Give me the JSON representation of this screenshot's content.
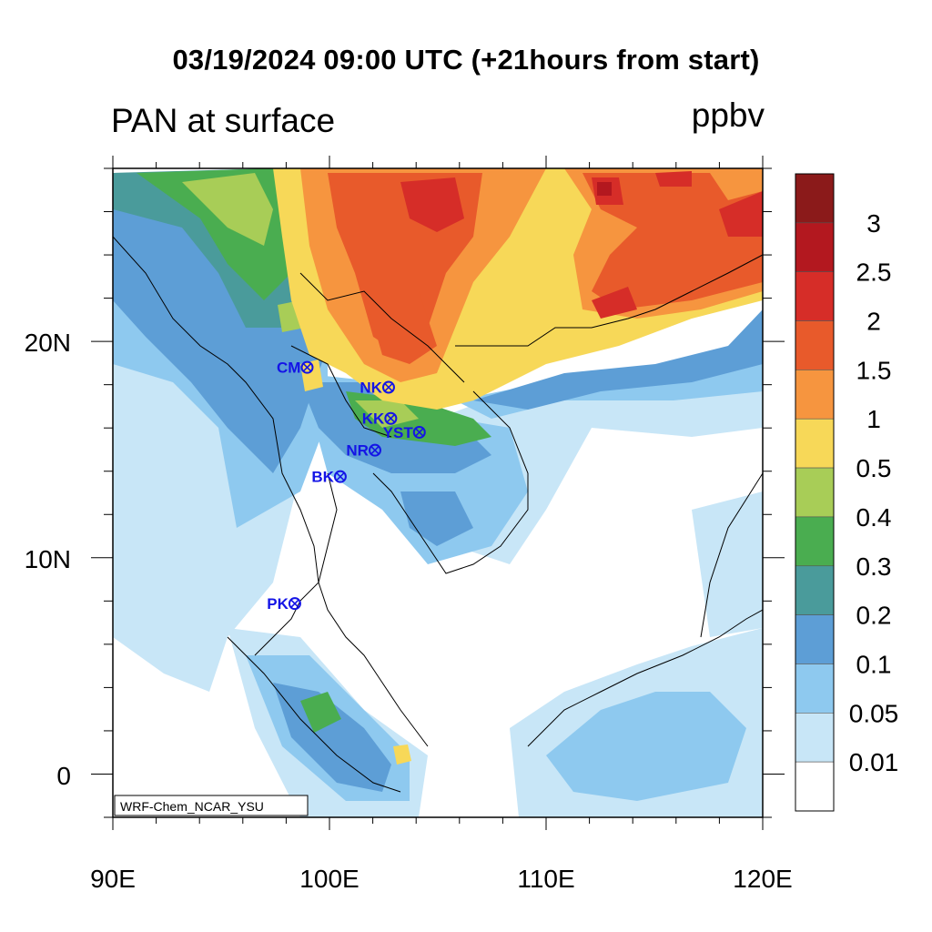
{
  "title": "03/19/2024 09:00 UTC (+21hours from start)",
  "subtitle": "PAN at surface",
  "units": "ppbv",
  "credit": "WRF-Chem_NCAR_YSU",
  "axes": {
    "x_ticks": [
      "90E",
      "100E",
      "110E",
      "120E"
    ],
    "y_ticks": [
      "20N",
      "10N",
      "0"
    ],
    "lon_range": [
      90,
      120
    ],
    "lat_range": [
      -2,
      28
    ]
  },
  "colorbar": {
    "labels": [
      "3",
      "2.5",
      "2",
      "1.5",
      "1",
      "0.5",
      "0.4",
      "0.3",
      "0.2",
      "0.1",
      "0.05",
      "0.01"
    ],
    "colors": [
      "#8b1a1a",
      "#b3181f",
      "#d62d28",
      "#e85a2b",
      "#f6953f",
      "#f7d858",
      "#a8cd57",
      "#4aad50",
      "#4a9b9b",
      "#5d9ed6",
      "#8ec9ef",
      "#c8e6f7",
      "#ffffff"
    ]
  },
  "stations": [
    {
      "name": "CM",
      "lon": 98.97,
      "lat": 18.8
    },
    {
      "name": "NK",
      "lon": 102.73,
      "lat": 17.88
    },
    {
      "name": "KK",
      "lon": 102.83,
      "lat": 16.44
    },
    {
      "name": "YST",
      "lon": 104.15,
      "lat": 15.8
    },
    {
      "name": "NR",
      "lon": 102.1,
      "lat": 14.97
    },
    {
      "name": "BK",
      "lon": 100.5,
      "lat": 13.75
    },
    {
      "name": "PK",
      "lon": 98.4,
      "lat": 7.88
    }
  ],
  "colors": {
    "station": "#1414e6",
    "land_line": "#000000"
  }
}
